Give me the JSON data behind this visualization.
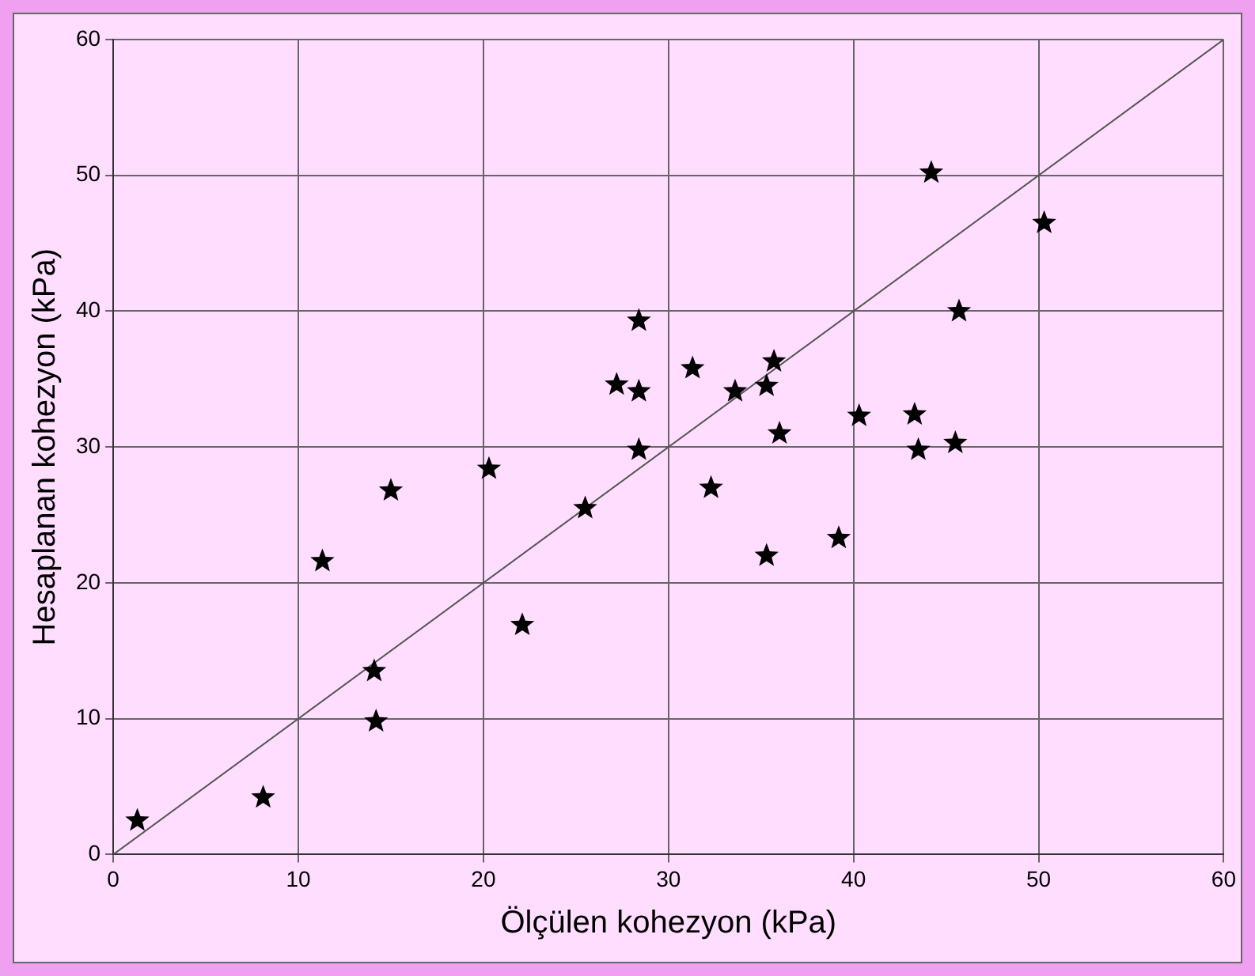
{
  "chart_data": {
    "type": "scatter",
    "xlabel": "Ölçülen kohezyon (kPa)",
    "ylabel": "Hesaplanan kohezyon (kPa)",
    "xlim": [
      0,
      60
    ],
    "ylim": [
      0,
      60
    ],
    "xticks": [
      0,
      10,
      20,
      30,
      40,
      50,
      60
    ],
    "yticks": [
      0,
      10,
      20,
      30,
      40,
      50,
      60
    ],
    "grid": true,
    "marker": "star",
    "series": [
      {
        "type": "scatter",
        "color": "#000000",
        "x": [
          1.3,
          8.1,
          11.3,
          14.1,
          14.2,
          15.0,
          20.3,
          22.1,
          25.5,
          27.2,
          28.4,
          28.4,
          28.4,
          31.3,
          32.3,
          33.6,
          36.0,
          35.3,
          35.7,
          35.3,
          39.2,
          40.3,
          43.3,
          43.5,
          45.5,
          44.2,
          50.3,
          45.7
        ],
        "values": [
          2.5,
          4.2,
          21.6,
          13.5,
          9.8,
          26.8,
          28.4,
          16.9,
          25.5,
          34.6,
          39.3,
          34.1,
          29.8,
          35.8,
          27.0,
          34.1,
          31.0,
          34.5,
          36.3,
          22.0,
          23.3,
          32.3,
          32.4,
          29.8,
          30.3,
          50.2,
          46.5,
          40.0
        ]
      },
      {
        "type": "line",
        "color": "#555555",
        "marker": "none",
        "x": [
          0,
          60
        ],
        "values": [
          0,
          60
        ]
      }
    ]
  }
}
